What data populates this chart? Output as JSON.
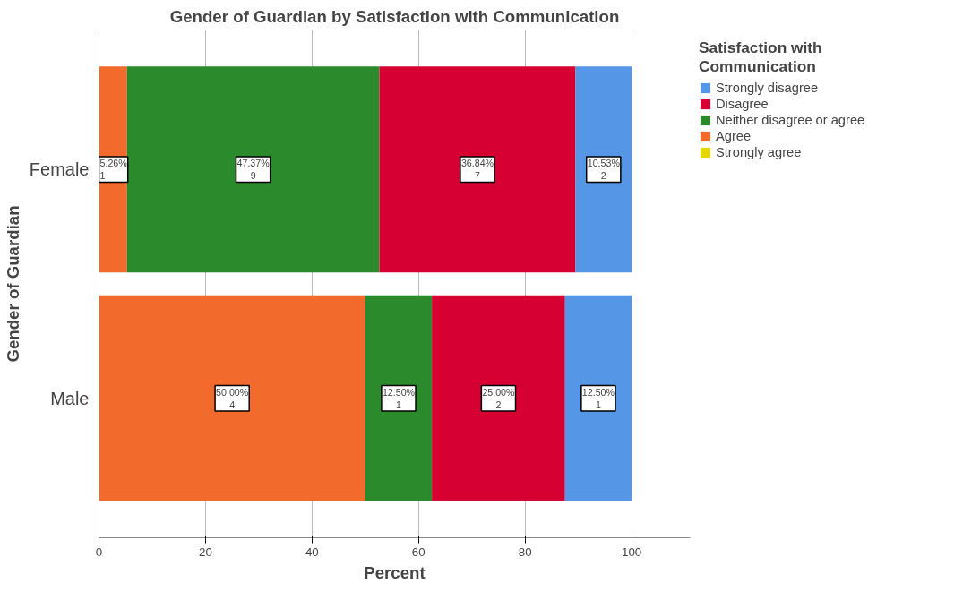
{
  "chart_data": {
    "type": "bar",
    "orientation": "horizontal",
    "stacked": true,
    "title": "Gender of Guardian by Satisfaction with Communication",
    "xlabel": "Percent",
    "ylabel": "Gender of Guardian",
    "legend_title": "Satisfaction with Communication",
    "categories": [
      "Female",
      "Male"
    ],
    "series": [
      {
        "name": "Strongly agree",
        "color": "#e6d600",
        "values": [
          0,
          0
        ],
        "value_labels": [
          null,
          null
        ]
      },
      {
        "name": "Agree",
        "color": "#f26a2c",
        "values": [
          5.26,
          50.0
        ],
        "value_labels": [
          "5.26%\n1",
          "50.00%\n4"
        ]
      },
      {
        "name": "Neither disagree or agree",
        "color": "#2b8a2b",
        "values": [
          47.37,
          12.5
        ],
        "value_labels": [
          "47.37%\n9",
          "12.50%\n1"
        ]
      },
      {
        "name": "Disagree",
        "color": "#d60032",
        "values": [
          36.84,
          25.0
        ],
        "value_labels": [
          "36.84%\n7",
          "25.00%\n2"
        ]
      },
      {
        "name": "Strongly disagree",
        "color": "#5596e6",
        "values": [
          10.53,
          12.5
        ],
        "value_labels": [
          "10.53%\n2",
          "12.50%\n1"
        ]
      }
    ],
    "xlim": [
      0,
      111
    ],
    "xticks": [
      0,
      20,
      40,
      60,
      80,
      100
    ],
    "grid": "x",
    "legend": "top right"
  }
}
